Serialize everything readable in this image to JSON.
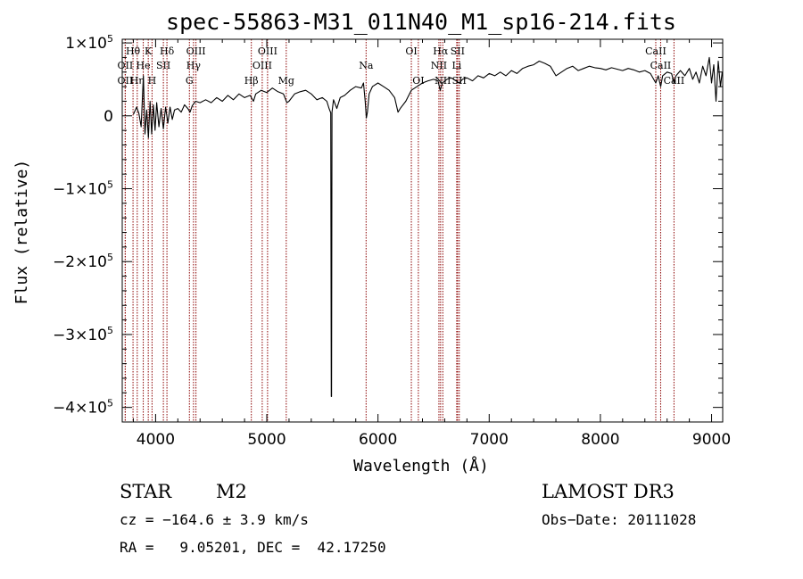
{
  "chart_data": {
    "type": "line",
    "title": "spec-55863-M31_011N40_M1_sp16-214.fits",
    "xlabel": "Wavelength (Å)",
    "ylabel": "Flux (relative)",
    "xlim": [
      3700,
      9100
    ],
    "ylim": [
      -420000.0,
      105000.0
    ],
    "x_ticks": [
      {
        "value": 4000,
        "label": "4000"
      },
      {
        "value": 5000,
        "label": "5000"
      },
      {
        "value": 6000,
        "label": "6000"
      },
      {
        "value": 7000,
        "label": "7000"
      },
      {
        "value": 8000,
        "label": "8000"
      },
      {
        "value": 9000,
        "label": "9000"
      }
    ],
    "y_ticks": [
      {
        "value": 100000,
        "mant": "1×10",
        "exp": "5"
      },
      {
        "value": 0,
        "mant": "0",
        "exp": ""
      },
      {
        "value": -100000,
        "mant": "−1×10",
        "exp": "5"
      },
      {
        "value": -200000,
        "mant": "−2×10",
        "exp": "5"
      },
      {
        "value": -300000,
        "mant": "−3×10",
        "exp": "5"
      },
      {
        "value": -400000,
        "mant": "−4×10",
        "exp": "5"
      }
    ],
    "series": [
      {
        "name": "flux",
        "points": [
          [
            3800,
            2000
          ],
          [
            3830,
            12000
          ],
          [
            3850,
            3000
          ],
          [
            3870,
            -15000
          ],
          [
            3890,
            55000
          ],
          [
            3905,
            -25000
          ],
          [
            3920,
            8000
          ],
          [
            3935,
            -30000
          ],
          [
            3950,
            20000
          ],
          [
            3965,
            -25000
          ],
          [
            3980,
            15000
          ],
          [
            3995,
            -20000
          ],
          [
            4010,
            18000
          ],
          [
            4030,
            -15000
          ],
          [
            4050,
            10000
          ],
          [
            4070,
            -18000
          ],
          [
            4090,
            12000
          ],
          [
            4110,
            -10000
          ],
          [
            4130,
            12000
          ],
          [
            4150,
            -5000
          ],
          [
            4170,
            8000
          ],
          [
            4200,
            10000
          ],
          [
            4230,
            5000
          ],
          [
            4260,
            15000
          ],
          [
            4290,
            10000
          ],
          [
            4310,
            5000
          ],
          [
            4330,
            14000
          ],
          [
            4360,
            20000
          ],
          [
            4400,
            18000
          ],
          [
            4450,
            22000
          ],
          [
            4500,
            18000
          ],
          [
            4550,
            25000
          ],
          [
            4600,
            20000
          ],
          [
            4650,
            28000
          ],
          [
            4700,
            22000
          ],
          [
            4750,
            30000
          ],
          [
            4800,
            25000
          ],
          [
            4850,
            28000
          ],
          [
            4880,
            20000
          ],
          [
            4900,
            30000
          ],
          [
            4950,
            35000
          ],
          [
            5000,
            32000
          ],
          [
            5050,
            38000
          ],
          [
            5100,
            33000
          ],
          [
            5150,
            30000
          ],
          [
            5180,
            18000
          ],
          [
            5200,
            20000
          ],
          [
            5250,
            30000
          ],
          [
            5300,
            33000
          ],
          [
            5350,
            35000
          ],
          [
            5400,
            30000
          ],
          [
            5450,
            22000
          ],
          [
            5500,
            25000
          ],
          [
            5540,
            20000
          ],
          [
            5560,
            10000
          ],
          [
            5575,
            4000
          ],
          [
            5580,
            -385000
          ],
          [
            5582,
            -385000
          ],
          [
            5586,
            5000
          ],
          [
            5600,
            22000
          ],
          [
            5630,
            10000
          ],
          [
            5660,
            25000
          ],
          [
            5700,
            28000
          ],
          [
            5750,
            35000
          ],
          [
            5800,
            40000
          ],
          [
            5850,
            38000
          ],
          [
            5870,
            45000
          ],
          [
            5885,
            20000
          ],
          [
            5895,
            -3000
          ],
          [
            5905,
            5000
          ],
          [
            5920,
            30000
          ],
          [
            5950,
            40000
          ],
          [
            6000,
            45000
          ],
          [
            6050,
            40000
          ],
          [
            6100,
            35000
          ],
          [
            6150,
            25000
          ],
          [
            6180,
            5000
          ],
          [
            6200,
            10000
          ],
          [
            6250,
            20000
          ],
          [
            6300,
            35000
          ],
          [
            6350,
            40000
          ],
          [
            6400,
            45000
          ],
          [
            6450,
            48000
          ],
          [
            6500,
            50000
          ],
          [
            6540,
            48000
          ],
          [
            6560,
            35000
          ],
          [
            6580,
            45000
          ],
          [
            6620,
            50000
          ],
          [
            6660,
            52000
          ],
          [
            6700,
            48000
          ],
          [
            6730,
            45000
          ],
          [
            6760,
            50000
          ],
          [
            6800,
            52000
          ],
          [
            6850,
            48000
          ],
          [
            6900,
            55000
          ],
          [
            6950,
            52000
          ],
          [
            7000,
            58000
          ],
          [
            7050,
            55000
          ],
          [
            7100,
            60000
          ],
          [
            7150,
            55000
          ],
          [
            7200,
            62000
          ],
          [
            7250,
            58000
          ],
          [
            7300,
            65000
          ],
          [
            7350,
            68000
          ],
          [
            7400,
            70000
          ],
          [
            7450,
            75000
          ],
          [
            7500,
            72000
          ],
          [
            7550,
            68000
          ],
          [
            7600,
            55000
          ],
          [
            7650,
            60000
          ],
          [
            7700,
            65000
          ],
          [
            7750,
            68000
          ],
          [
            7800,
            62000
          ],
          [
            7850,
            65000
          ],
          [
            7900,
            68000
          ],
          [
            7950,
            66000
          ],
          [
            8000,
            65000
          ],
          [
            8050,
            63000
          ],
          [
            8100,
            66000
          ],
          [
            8150,
            64000
          ],
          [
            8200,
            62000
          ],
          [
            8250,
            65000
          ],
          [
            8300,
            63000
          ],
          [
            8350,
            60000
          ],
          [
            8400,
            62000
          ],
          [
            8450,
            58000
          ],
          [
            8498,
            45000
          ],
          [
            8520,
            55000
          ],
          [
            8542,
            40000
          ],
          [
            8560,
            55000
          ],
          [
            8600,
            60000
          ],
          [
            8640,
            58000
          ],
          [
            8662,
            45000
          ],
          [
            8680,
            55000
          ],
          [
            8720,
            62000
          ],
          [
            8760,
            55000
          ],
          [
            8800,
            65000
          ],
          [
            8830,
            50000
          ],
          [
            8860,
            60000
          ],
          [
            8890,
            45000
          ],
          [
            8920,
            68000
          ],
          [
            8950,
            55000
          ],
          [
            8980,
            80000
          ],
          [
            9000,
            45000
          ],
          [
            9020,
            70000
          ],
          [
            9040,
            20000
          ],
          [
            9060,
            75000
          ],
          [
            9080,
            40000
          ],
          [
            9095,
            60000
          ]
        ]
      }
    ],
    "lines": [
      {
        "wl": 3797,
        "label": "Hθ",
        "row": 1,
        "color": "#8b0000"
      },
      {
        "wl": 3727,
        "label": "OII",
        "row": 2,
        "color": "#8b0000"
      },
      {
        "wl": 3727,
        "label": "OII",
        "row": 3,
        "color": "#8b0000"
      },
      {
        "wl": 3835,
        "label": "Hη",
        "row": 3,
        "color": "#8b0000"
      },
      {
        "wl": 3889,
        "label": "He",
        "row": 2,
        "color": "#8b0000"
      },
      {
        "wl": 3934,
        "label": "K",
        "row": 1,
        "color": "#8b0000"
      },
      {
        "wl": 3968,
        "label": "H",
        "row": 3,
        "color": "#8b0000"
      },
      {
        "wl": 4102,
        "label": "Hδ",
        "row": 1,
        "color": "#8b0000"
      },
      {
        "wl": 4070,
        "label": "SII",
        "row": 2,
        "color": "#8b0000"
      },
      {
        "wl": 4304,
        "label": "G",
        "row": 3,
        "color": "#8b0000"
      },
      {
        "wl": 4341,
        "label": "Hγ",
        "row": 2,
        "color": "#8b0000"
      },
      {
        "wl": 4363,
        "label": "OIII",
        "row": 1,
        "color": "#8b0000"
      },
      {
        "wl": 4861,
        "label": "Hβ",
        "row": 3,
        "color": "#8b0000"
      },
      {
        "wl": 4959,
        "label": "OIII",
        "row": 2,
        "color": "#8b0000"
      },
      {
        "wl": 5007,
        "label": "OIII",
        "row": 1,
        "color": "#8b0000"
      },
      {
        "wl": 5175,
        "label": "Mg",
        "row": 3,
        "color": "#8b0000"
      },
      {
        "wl": 5893,
        "label": "Na",
        "row": 2,
        "color": "#8b0000"
      },
      {
        "wl": 6300,
        "label": "OI",
        "row": 1,
        "color": "#8b0000"
      },
      {
        "wl": 6363,
        "label": "OI",
        "row": 3,
        "color": "#8b0000"
      },
      {
        "wl": 6548,
        "label": "NII",
        "row": 2,
        "color": "#8b0000"
      },
      {
        "wl": 6563,
        "label": "Hα",
        "row": 1,
        "color": "#8b0000"
      },
      {
        "wl": 6583,
        "label": "NII",
        "row": 3,
        "color": "#8b0000"
      },
      {
        "wl": 6708,
        "label": "Li",
        "row": 2,
        "color": "#8b0000"
      },
      {
        "wl": 6716,
        "label": "SII",
        "row": 1,
        "color": "#8b0000"
      },
      {
        "wl": 6731,
        "label": "SII",
        "row": 3,
        "color": "#8b0000"
      },
      {
        "wl": 8498,
        "label": "CaII",
        "row": 1,
        "color": "#8b0000"
      },
      {
        "wl": 8542,
        "label": "CaII",
        "row": 2,
        "color": "#8b0000"
      },
      {
        "wl": 8662,
        "label": "CaII",
        "row": 3,
        "color": "#8b0000"
      }
    ]
  },
  "info": {
    "class": "STAR",
    "subclass": "M2",
    "survey": "LAMOST DR3",
    "cz": "cz = −164.6 ± 3.9 km/s",
    "obs_date": "Obs−Date: 20111028",
    "coords": "RA =   9.05201, DEC =  42.17250"
  }
}
